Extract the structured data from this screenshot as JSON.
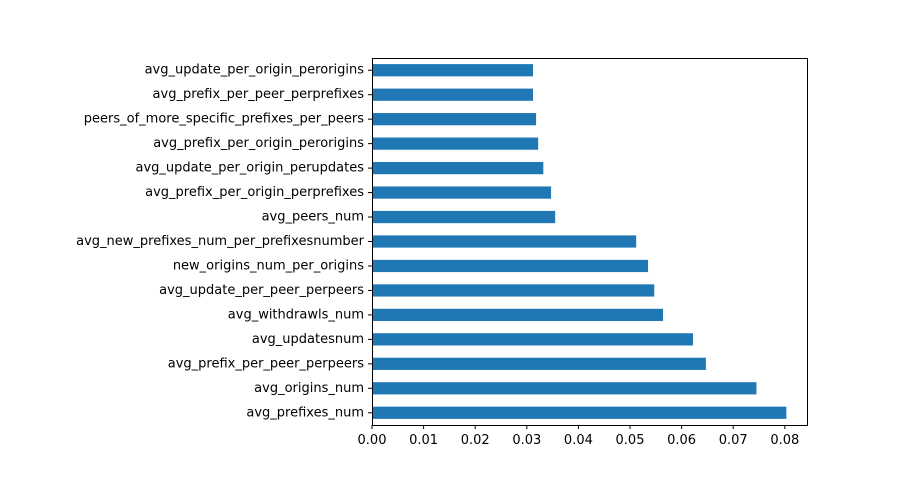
{
  "chart_data": {
    "type": "bar",
    "orientation": "horizontal",
    "categories": [
      "avg_prefixes_num",
      "avg_origins_num",
      "avg_prefix_per_peer_perpeers",
      "avg_updatesnum",
      "avg_withdrawls_num",
      "avg_update_per_peer_perpeers",
      "new_origins_num_per_origins",
      "avg_new_prefixes_num_per_prefixesnumber",
      "avg_peers_num",
      "avg_prefix_per_origin_perprefixes",
      "avg_update_per_origin_perupdates",
      "avg_prefix_per_origin_perorigins",
      "peers_of_more_specific_prefixes_per_peers",
      "avg_prefix_per_peer_perprefixes",
      "avg_update_per_origin_perorigins"
    ],
    "values": [
      0.0803,
      0.0745,
      0.0647,
      0.0622,
      0.0564,
      0.0547,
      0.0535,
      0.0512,
      0.0355,
      0.0347,
      0.0332,
      0.0322,
      0.0318,
      0.0312,
      0.0312
    ],
    "xlim": [
      0,
      0.0843
    ],
    "xticks": [
      "0.00",
      "0.01",
      "0.02",
      "0.03",
      "0.04",
      "0.05",
      "0.06",
      "0.07",
      "0.08"
    ],
    "bar_color": "#1f77b4",
    "title": "",
    "xlabel": "",
    "ylabel": "",
    "grid": false,
    "legend": "none"
  }
}
